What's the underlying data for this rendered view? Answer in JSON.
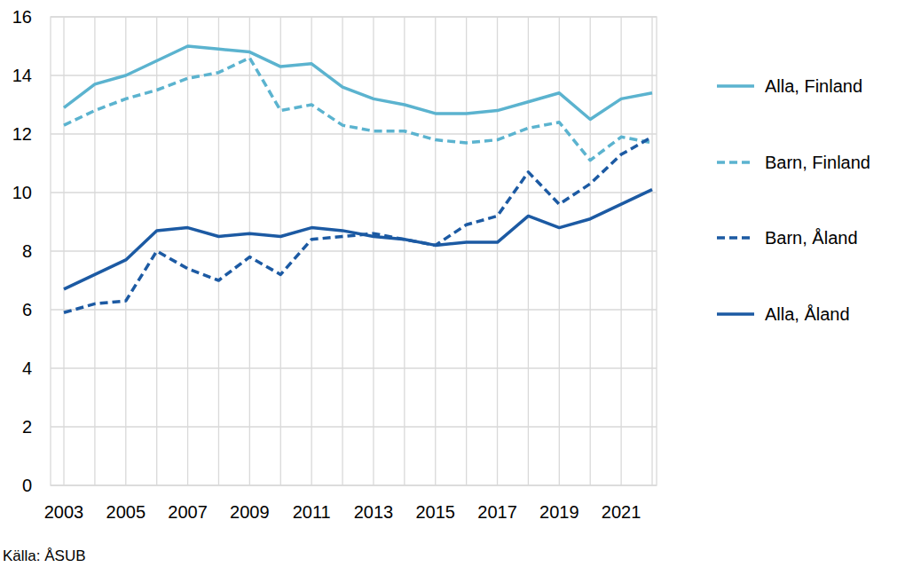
{
  "chart_data": {
    "type": "line",
    "source": "Källa: ÅSUB",
    "categories": [
      "2003",
      null,
      "2005",
      null,
      "2007",
      null,
      "2009",
      null,
      "2011",
      null,
      "2013",
      null,
      "2015",
      null,
      "2017",
      null,
      "2019",
      null,
      "2021",
      null
    ],
    "ylim": [
      0,
      16
    ],
    "yticks": [
      0,
      2,
      4,
      6,
      8,
      10,
      12,
      14,
      16
    ],
    "grid": true,
    "legend": "right",
    "series": [
      {
        "name": "Alla, Finland",
        "color": "#5bb3cf",
        "line_style": "solid",
        "values": [
          12.9,
          13.7,
          14.0,
          14.5,
          15.0,
          14.9,
          14.8,
          14.3,
          14.4,
          13.6,
          13.2,
          13.0,
          12.7,
          12.7,
          12.8,
          13.1,
          13.4,
          12.5,
          13.2,
          13.4
        ]
      },
      {
        "name": "Barn, Finland",
        "color": "#5bb3cf",
        "line_style": "dashed",
        "values": [
          12.3,
          12.8,
          13.2,
          13.5,
          13.9,
          14.1,
          14.6,
          12.8,
          13.0,
          12.3,
          12.1,
          12.1,
          11.8,
          11.7,
          11.8,
          12.2,
          12.4,
          11.1,
          11.9,
          11.7
        ]
      },
      {
        "name": "Barn, Åland",
        "color": "#1c5aa3",
        "line_style": "dashed",
        "values": [
          5.9,
          6.2,
          6.3,
          8.0,
          7.4,
          7.0,
          7.8,
          7.2,
          8.4,
          8.5,
          8.6,
          8.4,
          8.2,
          8.9,
          9.2,
          10.7,
          9.6,
          10.3,
          11.3,
          11.9
        ]
      },
      {
        "name": "Alla, Åland",
        "color": "#1c5aa3",
        "line_style": "solid",
        "values": [
          6.7,
          7.2,
          7.7,
          8.7,
          8.8,
          8.5,
          8.6,
          8.5,
          8.8,
          8.7,
          8.5,
          8.4,
          8.2,
          8.3,
          8.3,
          9.2,
          8.8,
          9.1,
          9.6,
          10.1
        ]
      }
    ]
  }
}
